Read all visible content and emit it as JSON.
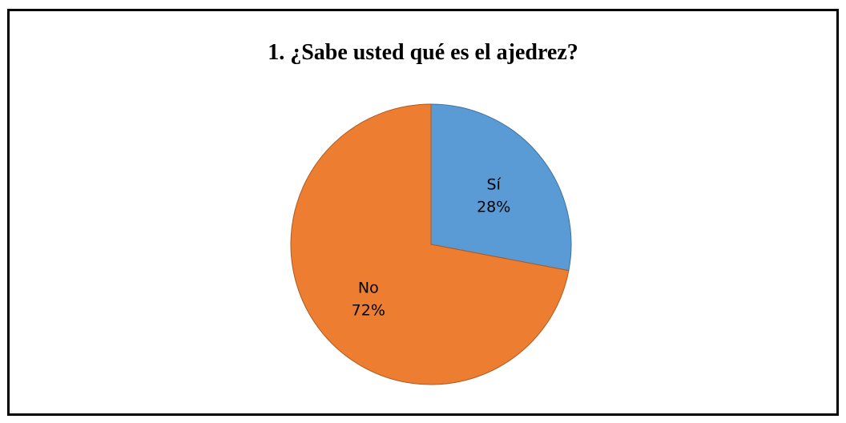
{
  "chart_data": {
    "type": "pie",
    "title": "1. ¿Sabe usted qué es el ajedrez?",
    "categories": [
      "Sí",
      "No"
    ],
    "values": [
      28,
      72
    ],
    "labels": [
      "28%",
      "72%"
    ],
    "colors": [
      "#5B9BD5",
      "#ED7D31"
    ],
    "legend": "none"
  }
}
